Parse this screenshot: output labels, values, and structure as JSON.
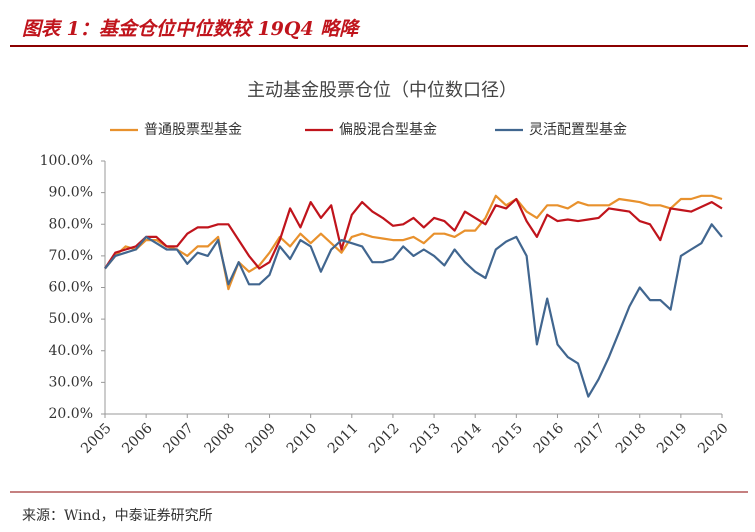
{
  "header": {
    "title": "图表 1：基金仓位中位数较 19Q4 略降"
  },
  "chart_data": {
    "type": "line",
    "title": "主动基金股票仓位（中位数口径）",
    "x": [
      2005,
      2005.25,
      2005.5,
      2005.75,
      2006,
      2006.25,
      2006.5,
      2006.75,
      2007,
      2007.25,
      2007.5,
      2007.75,
      2008,
      2008.25,
      2008.5,
      2008.75,
      2009,
      2009.25,
      2009.5,
      2009.75,
      2010,
      2010.25,
      2010.5,
      2010.75,
      2011,
      2011.25,
      2011.5,
      2011.75,
      2012,
      2012.25,
      2012.5,
      2012.75,
      2013,
      2013.25,
      2013.5,
      2013.75,
      2014,
      2014.25,
      2014.5,
      2014.75,
      2015,
      2015.25,
      2015.5,
      2015.75,
      2016,
      2016.25,
      2016.5,
      2016.75,
      2017,
      2017.25,
      2017.5,
      2017.75,
      2018,
      2018.25,
      2018.5,
      2018.75,
      2019,
      2019.25,
      2019.5,
      2019.75,
      2020
    ],
    "series": [
      {
        "name": "普通股票型基金",
        "color": "#e8912d",
        "values": [
          66,
          70,
          73,
          72,
          75,
          75,
          73,
          72,
          70,
          73,
          73,
          76,
          59.5,
          68,
          65,
          67,
          71,
          76,
          73,
          77,
          74,
          77,
          74,
          71,
          76,
          77,
          76,
          75.5,
          75,
          75,
          76,
          74,
          77,
          77,
          76,
          78,
          78,
          82,
          89,
          86,
          88,
          84,
          82,
          86,
          86,
          85,
          87,
          86,
          86,
          86,
          88,
          87.5,
          87,
          86,
          86,
          85,
          88,
          88,
          89,
          89,
          88
        ]
      },
      {
        "name": "偏股混合型基金",
        "color": "#c0141c",
        "values": [
          66,
          71,
          72,
          73,
          76,
          76,
          73,
          73,
          77,
          79,
          79,
          80,
          80,
          75,
          70,
          66,
          68,
          75,
          85,
          79,
          87,
          82,
          86,
          72,
          83,
          87,
          84,
          82,
          79.5,
          80,
          82,
          79,
          82,
          81,
          78,
          84,
          82,
          80,
          86,
          85,
          88,
          81,
          76,
          83,
          81,
          81.5,
          81,
          81.5,
          82,
          85,
          84.5,
          84,
          81,
          80,
          75,
          85,
          84.5,
          84,
          85.5,
          87,
          85
        ]
      },
      {
        "name": "灵活配置型基金",
        "color": "#41668f",
        "values": [
          66,
          70,
          71,
          72,
          76,
          74,
          72,
          72,
          67.5,
          71,
          70,
          75,
          61,
          68,
          61,
          61,
          64,
          73,
          69,
          75,
          73,
          65,
          72,
          75,
          74,
          73,
          68,
          68,
          69,
          73,
          70,
          72,
          70,
          67,
          72,
          68,
          65,
          63,
          72,
          74.5,
          76,
          70,
          42,
          56.5,
          42,
          38,
          36,
          25.5,
          31,
          38,
          46,
          54,
          60,
          56,
          56,
          53,
          70,
          72,
          74,
          80,
          76
        ]
      }
    ],
    "xlim": [
      2005,
      2020
    ],
    "xticks": [
      2005,
      2006,
      2007,
      2008,
      2009,
      2010,
      2011,
      2012,
      2013,
      2014,
      2015,
      2016,
      2017,
      2018,
      2019,
      2020
    ],
    "ylim": [
      20,
      100
    ],
    "yticks": [
      {
        "value": 20,
        "label": "20.0%"
      },
      {
        "value": 30,
        "label": "30.0%"
      },
      {
        "value": 40,
        "label": "40.0%"
      },
      {
        "value": 50,
        "label": "50.0%"
      },
      {
        "value": 60,
        "label": "60.0%"
      },
      {
        "value": 70,
        "label": "70.0%"
      },
      {
        "value": 80,
        "label": "80.0%"
      },
      {
        "value": 90,
        "label": "90.0%"
      },
      {
        "value": 100,
        "label": "100.0%"
      }
    ],
    "legend": "top",
    "grid": false
  },
  "footer": {
    "source": "来源：Wind，中泰证券研究所"
  }
}
